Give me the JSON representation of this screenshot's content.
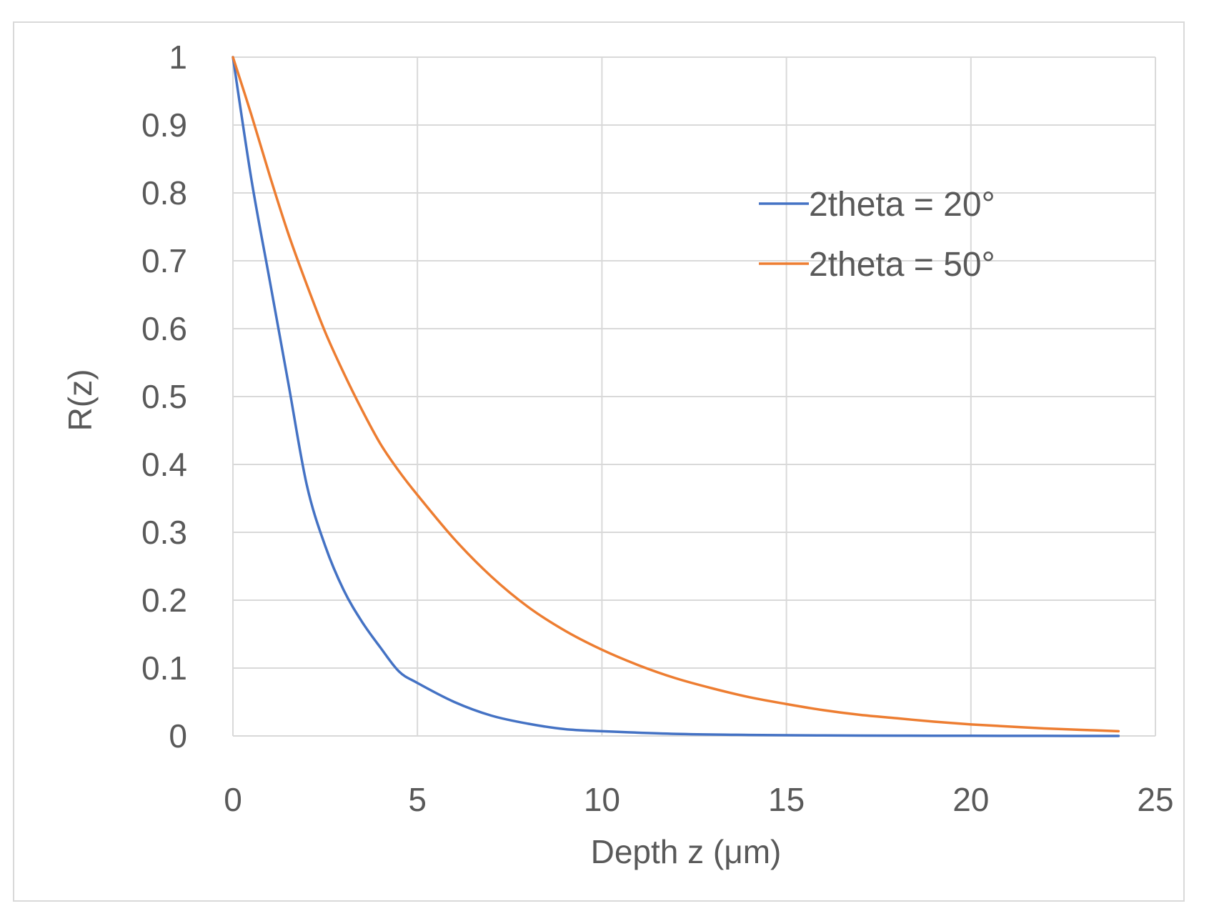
{
  "chart_data": {
    "type": "line",
    "title": "",
    "xlabel": "Depth z (μm)",
    "ylabel": "R(z)",
    "xlim": [
      0,
      25
    ],
    "ylim": [
      0,
      1
    ],
    "grid": true,
    "legend_position": "top-right",
    "x_ticks": [
      0,
      5,
      10,
      15,
      20,
      25
    ],
    "x_tick_labels": [
      "0",
      "5",
      "10",
      "15",
      "20",
      "25"
    ],
    "y_ticks": [
      0,
      0.1,
      0.2,
      0.3,
      0.4,
      0.5,
      0.6,
      0.7,
      0.8,
      0.9,
      1
    ],
    "y_tick_labels": [
      "0",
      "0.1",
      "0.2",
      "0.3",
      "0.4",
      "0.5",
      "0.6",
      "0.7",
      "0.8",
      "0.9",
      "1"
    ],
    "series": [
      {
        "name": "2theta = 20°",
        "color": "#4472C4",
        "x": [
          0,
          0.5,
          1,
          1.5,
          2,
          2.5,
          3,
          3.5,
          4,
          4.5,
          5,
          6,
          7,
          8,
          9,
          10,
          12,
          14,
          16,
          18,
          20,
          22,
          24
        ],
        "y": [
          1.0,
          0.82,
          0.67,
          0.52,
          0.37,
          0.28,
          0.215,
          0.168,
          0.13,
          0.095,
          0.078,
          0.05,
          0.03,
          0.018,
          0.01,
          0.007,
          0.003,
          0.0015,
          0.0008,
          0.0004,
          0.0002,
          0.0001,
          0.0
        ]
      },
      {
        "name": "2theta = 50°",
        "color": "#ED7D31",
        "x": [
          0,
          0.5,
          1,
          1.5,
          2,
          2.5,
          3,
          3.5,
          4,
          4.5,
          5,
          6,
          7,
          8,
          9,
          10,
          11,
          12,
          13,
          14,
          15,
          16,
          17,
          18,
          19,
          20,
          21,
          22,
          23,
          24
        ],
        "y": [
          1.0,
          0.915,
          0.825,
          0.74,
          0.665,
          0.595,
          0.535,
          0.48,
          0.43,
          0.39,
          0.355,
          0.29,
          0.235,
          0.19,
          0.155,
          0.127,
          0.104,
          0.085,
          0.07,
          0.057,
          0.047,
          0.038,
          0.031,
          0.026,
          0.021,
          0.017,
          0.014,
          0.011,
          0.009,
          0.007
        ]
      }
    ]
  }
}
